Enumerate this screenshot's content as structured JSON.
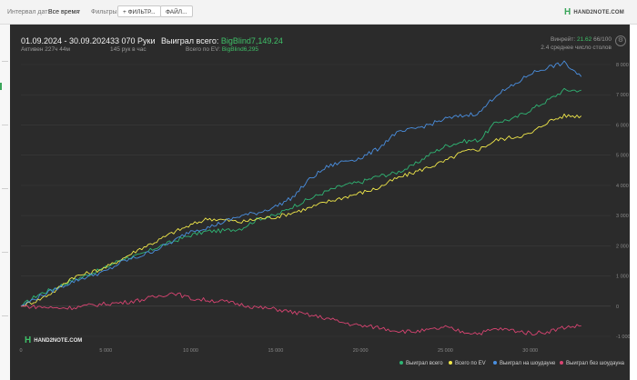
{
  "toolbar": {
    "date_label": "Интервал дат:",
    "date_value": "Все время",
    "filters_label": "Фильтры:",
    "filter_button": "+ ФИЛЬТР...",
    "file_button": "ФАЙЛ..."
  },
  "brand": {
    "logo_text": "HAND2NOTE.COM",
    "watermark_text": "HAND2NOTE.COM"
  },
  "stats": {
    "date_range": "01.09.2024 - 30.09.2024",
    "active": "Активен 227ч 44м",
    "hands": "33 070 Руки",
    "hands_per_hour": "145 рук в час",
    "won_label": "Выиграл всего:",
    "won_value": "BigBlind7,149.24",
    "ev_label": "Всего по EV:",
    "ev_value": "BigBlind6,295",
    "winrate_label": "Винрейт:",
    "winrate_value": "21.62",
    "winrate_hands": "66/100",
    "tables_avg": "2.4 среднее число столов"
  },
  "colors": {
    "won": "#2fb574",
    "ev": "#f1e84a",
    "showdown": "#4a8fe0",
    "nonshowdown": "#d94472",
    "panel_bg": "#2b2b2b",
    "grid": "#3a3a3a"
  },
  "chart_data": {
    "type": "line",
    "x_ticks": [
      "0",
      "5 000",
      "10 000",
      "15 000",
      "20 000",
      "25 000",
      "30 000"
    ],
    "y_ticks": [
      "-1 000",
      "0",
      "1 000",
      "2 000",
      "3 000",
      "4 000",
      "5 000",
      "6 000",
      "7 000",
      "8 000"
    ],
    "xlim": [
      0,
      33070
    ],
    "ylim": [
      -1000,
      8000
    ],
    "grid": true,
    "legend_position": "bottom-right",
    "series": [
      {
        "name": "Выиграл всего",
        "color": "#2fb574",
        "x": [
          0,
          1000,
          2000,
          3000,
          4000,
          5000,
          6000,
          7000,
          8000,
          9000,
          10000,
          11000,
          12000,
          13000,
          14000,
          15000,
          16000,
          17000,
          18000,
          19000,
          20000,
          21000,
          22000,
          23000,
          24000,
          25000,
          26000,
          27000,
          28000,
          29000,
          30000,
          31000,
          32000,
          33000
        ],
        "y": [
          0,
          380,
          600,
          850,
          1050,
          1280,
          1580,
          1680,
          1950,
          2150,
          2350,
          2480,
          2500,
          2580,
          2900,
          3000,
          3300,
          3550,
          3800,
          4000,
          4100,
          4300,
          4400,
          4620,
          5000,
          5300,
          5450,
          5500,
          6100,
          6200,
          6500,
          6800,
          7150,
          7150
        ]
      },
      {
        "name": "Всего по EV",
        "color": "#f1e84a",
        "x": [
          0,
          1000,
          2000,
          3000,
          4000,
          5000,
          6000,
          7000,
          8000,
          9000,
          10000,
          11000,
          12000,
          13000,
          14000,
          15000,
          16000,
          17000,
          18000,
          19000,
          20000,
          21000,
          22000,
          23000,
          24000,
          25000,
          26000,
          27000,
          28000,
          29000,
          30000,
          31000,
          32000,
          33000
        ],
        "y": [
          0,
          200,
          500,
          950,
          1100,
          1280,
          1580,
          1900,
          2150,
          2450,
          2680,
          2900,
          2850,
          2780,
          2900,
          2950,
          3100,
          3250,
          3450,
          3600,
          3750,
          3900,
          4200,
          4400,
          4600,
          4800,
          5100,
          5200,
          5500,
          5600,
          5700,
          6100,
          6300,
          6300
        ]
      },
      {
        "name": "Выиграл на шоудауне",
        "color": "#4a8fe0",
        "x": [
          0,
          1000,
          2000,
          3000,
          4000,
          5000,
          6000,
          7000,
          8000,
          9000,
          10000,
          11000,
          12000,
          13000,
          14000,
          15000,
          16000,
          17000,
          18000,
          19000,
          20000,
          21000,
          22000,
          23000,
          24000,
          25000,
          26000,
          27000,
          28000,
          29000,
          30000,
          31000,
          32000,
          33000
        ],
        "y": [
          0,
          300,
          550,
          800,
          1000,
          1150,
          1480,
          1650,
          1880,
          2150,
          2500,
          2600,
          2800,
          3000,
          3100,
          3300,
          3600,
          4200,
          4600,
          4800,
          4900,
          5200,
          5700,
          5850,
          6000,
          6200,
          6300,
          6400,
          7000,
          7300,
          7700,
          7900,
          8050,
          7600
        ]
      },
      {
        "name": "Выиграл без шоудауна",
        "color": "#d94472",
        "x": [
          0,
          1000,
          2000,
          3000,
          4000,
          5000,
          6000,
          7000,
          8000,
          9000,
          10000,
          11000,
          12000,
          13000,
          14000,
          15000,
          16000,
          17000,
          18000,
          19000,
          20000,
          21000,
          22000,
          23000,
          24000,
          25000,
          26000,
          27000,
          28000,
          29000,
          30000,
          31000,
          32000,
          33000
        ],
        "y": [
          0,
          -20,
          -60,
          -50,
          20,
          80,
          120,
          200,
          320,
          450,
          250,
          200,
          150,
          50,
          -50,
          -100,
          -200,
          -300,
          -400,
          -550,
          -650,
          -700,
          -800,
          -850,
          -800,
          -700,
          -850,
          -900,
          -750,
          -800,
          -900,
          -850,
          -700,
          -650
        ]
      }
    ]
  }
}
